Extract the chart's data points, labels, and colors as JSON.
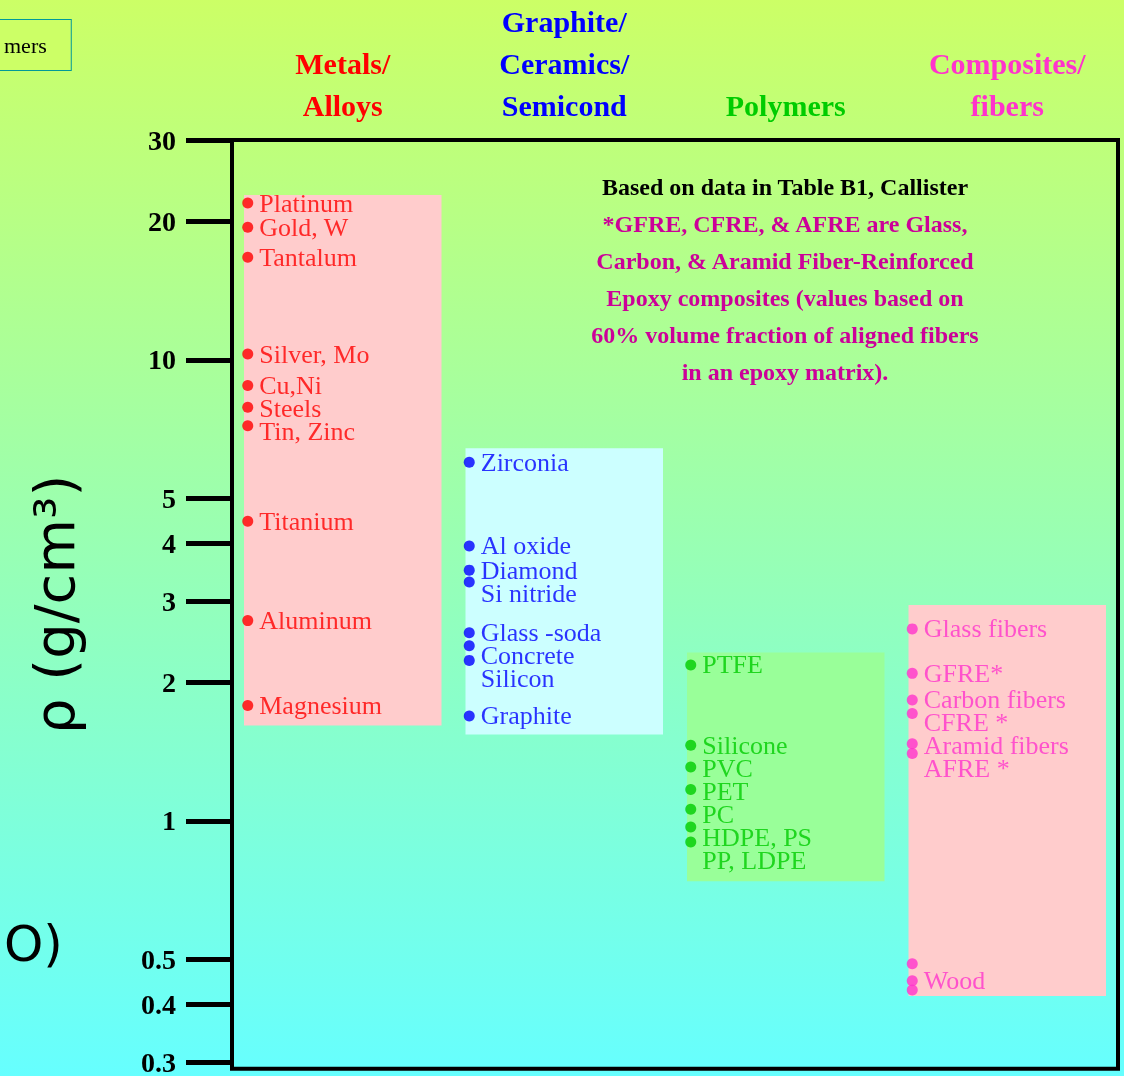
{
  "chart_data": {
    "type": "scatter",
    "ylabel": "ρ (g/cm³)",
    "categories": [
      "Metals/\nAlloys",
      "Graphite/\nCeramics/\nSemicond",
      "Polymers",
      "Composites/\nfibers"
    ],
    "series": [
      {
        "color": "#ff0000",
        "x": [
          "Metals/\nAlloys",
          "Metals/\nAlloys",
          "Metals/\nAlloys",
          "Metals/\nAlloys",
          "Metals/\nAlloys",
          "Metals/\nAlloys",
          "Metals/\nAlloys",
          "Metals/\nAlloys",
          "Metals/\nAlloys",
          "Metals/\nAlloys"
        ],
        "values": [
          21.9,
          19.4,
          16.7,
          10.3,
          8.8,
          7.9,
          7.2,
          4.47,
          2.72,
          1.78
        ],
        "value_labels": [
          "Platinum",
          "Gold, W",
          "Tantalum",
          "Silver, Mo",
          "Cu,Ni",
          "Steels",
          "Tin, Zinc",
          "Titanium",
          "Aluminum",
          "Magnesium"
        ]
      },
      {
        "color": "#0000ff",
        "x": [
          "Graphite/\nCeramics/\nSemicond",
          "Graphite/\nCeramics/\nSemicond",
          "Graphite/\nCeramics/\nSemicond",
          "Graphite/\nCeramics/\nSemicond",
          "Graphite/\nCeramics/\nSemicond",
          "Graphite/\nCeramics/\nSemicond",
          "Graphite/\nCeramics/\nSemicond",
          "Graphite/\nCeramics/\nSemicond"
        ],
        "values": [
          6.0,
          3.95,
          3.5,
          3.3,
          2.56,
          2.4,
          2.23,
          1.69
        ],
        "value_labels": [
          "Zirconia",
          "Al oxide",
          "Diamond",
          "Si nitride",
          "Glass -soda",
          "Concrete",
          "Silicon",
          "Graphite"
        ]
      },
      {
        "color": "#00cc00",
        "x": [
          "Polymers",
          "Polymers",
          "Polymers",
          "Polymers",
          "Polymers",
          "Polymers",
          "Polymers"
        ],
        "values": [
          2.18,
          1.46,
          1.31,
          1.17,
          1.06,
          0.97,
          0.9
        ],
        "value_labels": [
          "PTFE",
          "Silicone",
          "PVC",
          "PET",
          "PC",
          "HDPE, PS",
          "PP, LDPE"
        ]
      },
      {
        "color": "#ff33cc",
        "x": [
          "Composites/\nfibers",
          "Composites/\nfibers",
          "Composites/\nfibers",
          "Composites/\nfibers",
          "Composites/\nfibers",
          "Composites/\nfibers",
          "Composites/\nfibers",
          "Composites/\nfibers",
          "Composites/\nfibers"
        ],
        "values": [
          2.61,
          2.09,
          1.83,
          1.71,
          1.47,
          1.4,
          0.49,
          0.45,
          0.43
        ],
        "value_labels": [
          "Glass fibers",
          "GFRE*",
          "Carbon fibers",
          "CFRE *",
          "Aramid fibers",
          "AFRE *",
          null,
          "Wood",
          null
        ]
      }
    ],
    "bands": [
      {
        "axis": "y",
        "from": 1.61,
        "to": 22.8,
        "color": "#ffcccc"
      },
      {
        "axis": "y",
        "from": 1.54,
        "to": 6.43,
        "color": "#ccffff"
      },
      {
        "axis": "y",
        "from": 0.74,
        "to": 2.32,
        "color": "#99ff99"
      },
      {
        "axis": "y",
        "from": 0.417,
        "to": 2.94,
        "color": "#ffcccc"
      }
    ],
    "log": "y",
    "ylim": [
      0.29,
      30
    ],
    "yticks": [
      0.3,
      0.4,
      0.5,
      1,
      2,
      3,
      4,
      5,
      10,
      20,
      30
    ],
    "grid": false,
    "marker": "circle",
    "annotations": [
      "Based on data in Table B1, Callister",
      "*GFRE, CFRE, & AFRE are Glass,\nCarbon, & Aramid Fiber-Reinforced\nEpoxy composites (values based on\n60% volume fraction of aligned fibers\nin an epoxy matrix).",
      "mers",
      "O)"
    ]
  }
}
